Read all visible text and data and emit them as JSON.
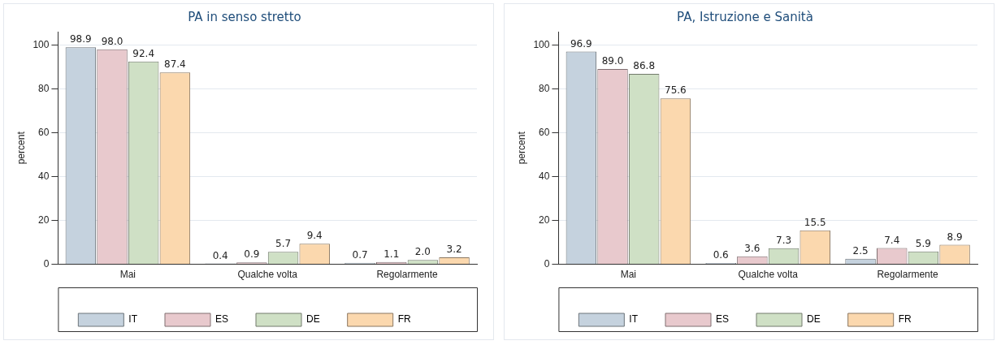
{
  "chart_data": [
    {
      "type": "bar",
      "title": "PA in senso stretto",
      "ylabel": "percent",
      "categories": [
        "Mai",
        "Qualche volta",
        "Regolarmente"
      ],
      "ylim": [
        0,
        106
      ],
      "yticks": [
        0,
        20,
        40,
        60,
        80,
        100
      ],
      "grid": "y",
      "legend": "bottom",
      "series": [
        {
          "name": "IT",
          "color": "#c5d2de",
          "values": [
            98.9,
            0.4,
            0.7
          ],
          "value_labels": [
            "98.9",
            "0.4",
            "0.7"
          ]
        },
        {
          "name": "ES",
          "color": "#e8c9cd",
          "values": [
            98.0,
            0.9,
            1.1
          ],
          "value_labels": [
            "98.0",
            "0.9",
            "1.1"
          ]
        },
        {
          "name": "DE",
          "color": "#cfe0c5",
          "values": [
            92.4,
            5.7,
            2.0
          ],
          "value_labels": [
            "92.4",
            "5.7",
            "2.0"
          ]
        },
        {
          "name": "FR",
          "color": "#fbd8ae",
          "values": [
            87.4,
            9.4,
            3.2
          ],
          "value_labels": [
            "87.4",
            "9.4",
            "3.2"
          ]
        }
      ]
    },
    {
      "type": "bar",
      "title": "PA, Istruzione e Sanità",
      "ylabel": "percent",
      "categories": [
        "Mai",
        "Qualche volta",
        "Regolarmente"
      ],
      "ylim": [
        0,
        106
      ],
      "yticks": [
        0,
        20,
        40,
        60,
        80,
        100
      ],
      "grid": "y",
      "legend": "bottom",
      "series": [
        {
          "name": "IT",
          "color": "#c5d2de",
          "values": [
            96.9,
            0.6,
            2.5
          ],
          "value_labels": [
            "96.9",
            "0.6",
            "2.5"
          ]
        },
        {
          "name": "ES",
          "color": "#e8c9cd",
          "values": [
            89.0,
            3.6,
            7.4
          ],
          "value_labels": [
            "89.0",
            "3.6",
            "7.4"
          ]
        },
        {
          "name": "DE",
          "color": "#cfe0c5",
          "values": [
            86.8,
            7.3,
            5.9
          ],
          "value_labels": [
            "86.8",
            "7.3",
            "5.9"
          ]
        },
        {
          "name": "FR",
          "color": "#fbd8ae",
          "values": [
            75.6,
            15.5,
            8.9
          ],
          "value_labels": [
            "75.6",
            "15.5",
            "8.9"
          ]
        }
      ]
    }
  ]
}
